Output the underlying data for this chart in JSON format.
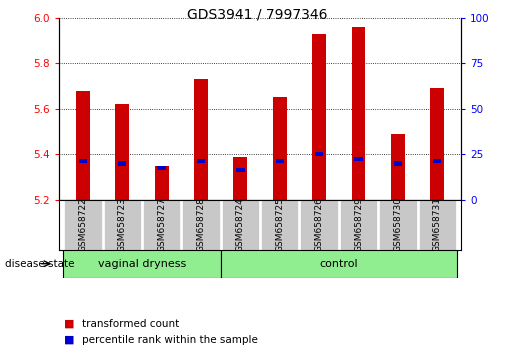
{
  "title": "GDS3941 / 7997346",
  "samples": [
    "GSM658722",
    "GSM658723",
    "GSM658727",
    "GSM658728",
    "GSM658724",
    "GSM658725",
    "GSM658726",
    "GSM658729",
    "GSM658730",
    "GSM658731"
  ],
  "red_top": [
    5.68,
    5.62,
    5.35,
    5.73,
    5.39,
    5.65,
    5.93,
    5.96,
    5.49,
    5.69
  ],
  "red_bottom": [
    5.2,
    5.2,
    5.2,
    5.2,
    5.2,
    5.2,
    5.2,
    5.2,
    5.2,
    5.2
  ],
  "blue_values": [
    5.37,
    5.36,
    5.34,
    5.37,
    5.33,
    5.37,
    5.4,
    5.38,
    5.36,
    5.37
  ],
  "ylim_left": [
    5.2,
    6.0
  ],
  "ylim_right": [
    0,
    100
  ],
  "yticks_left": [
    5.2,
    5.4,
    5.6,
    5.8,
    6.0
  ],
  "yticks_right": [
    0,
    25,
    50,
    75,
    100
  ],
  "bar_color": "#CC0000",
  "blue_color": "#0000CC",
  "tick_area_bg": "#c8c8c8",
  "group_color": "#90EE90",
  "legend_labels": [
    "transformed count",
    "percentile rank within the sample"
  ],
  "disease_state_label": "disease state",
  "vd_count": 4,
  "ctrl_count": 6
}
